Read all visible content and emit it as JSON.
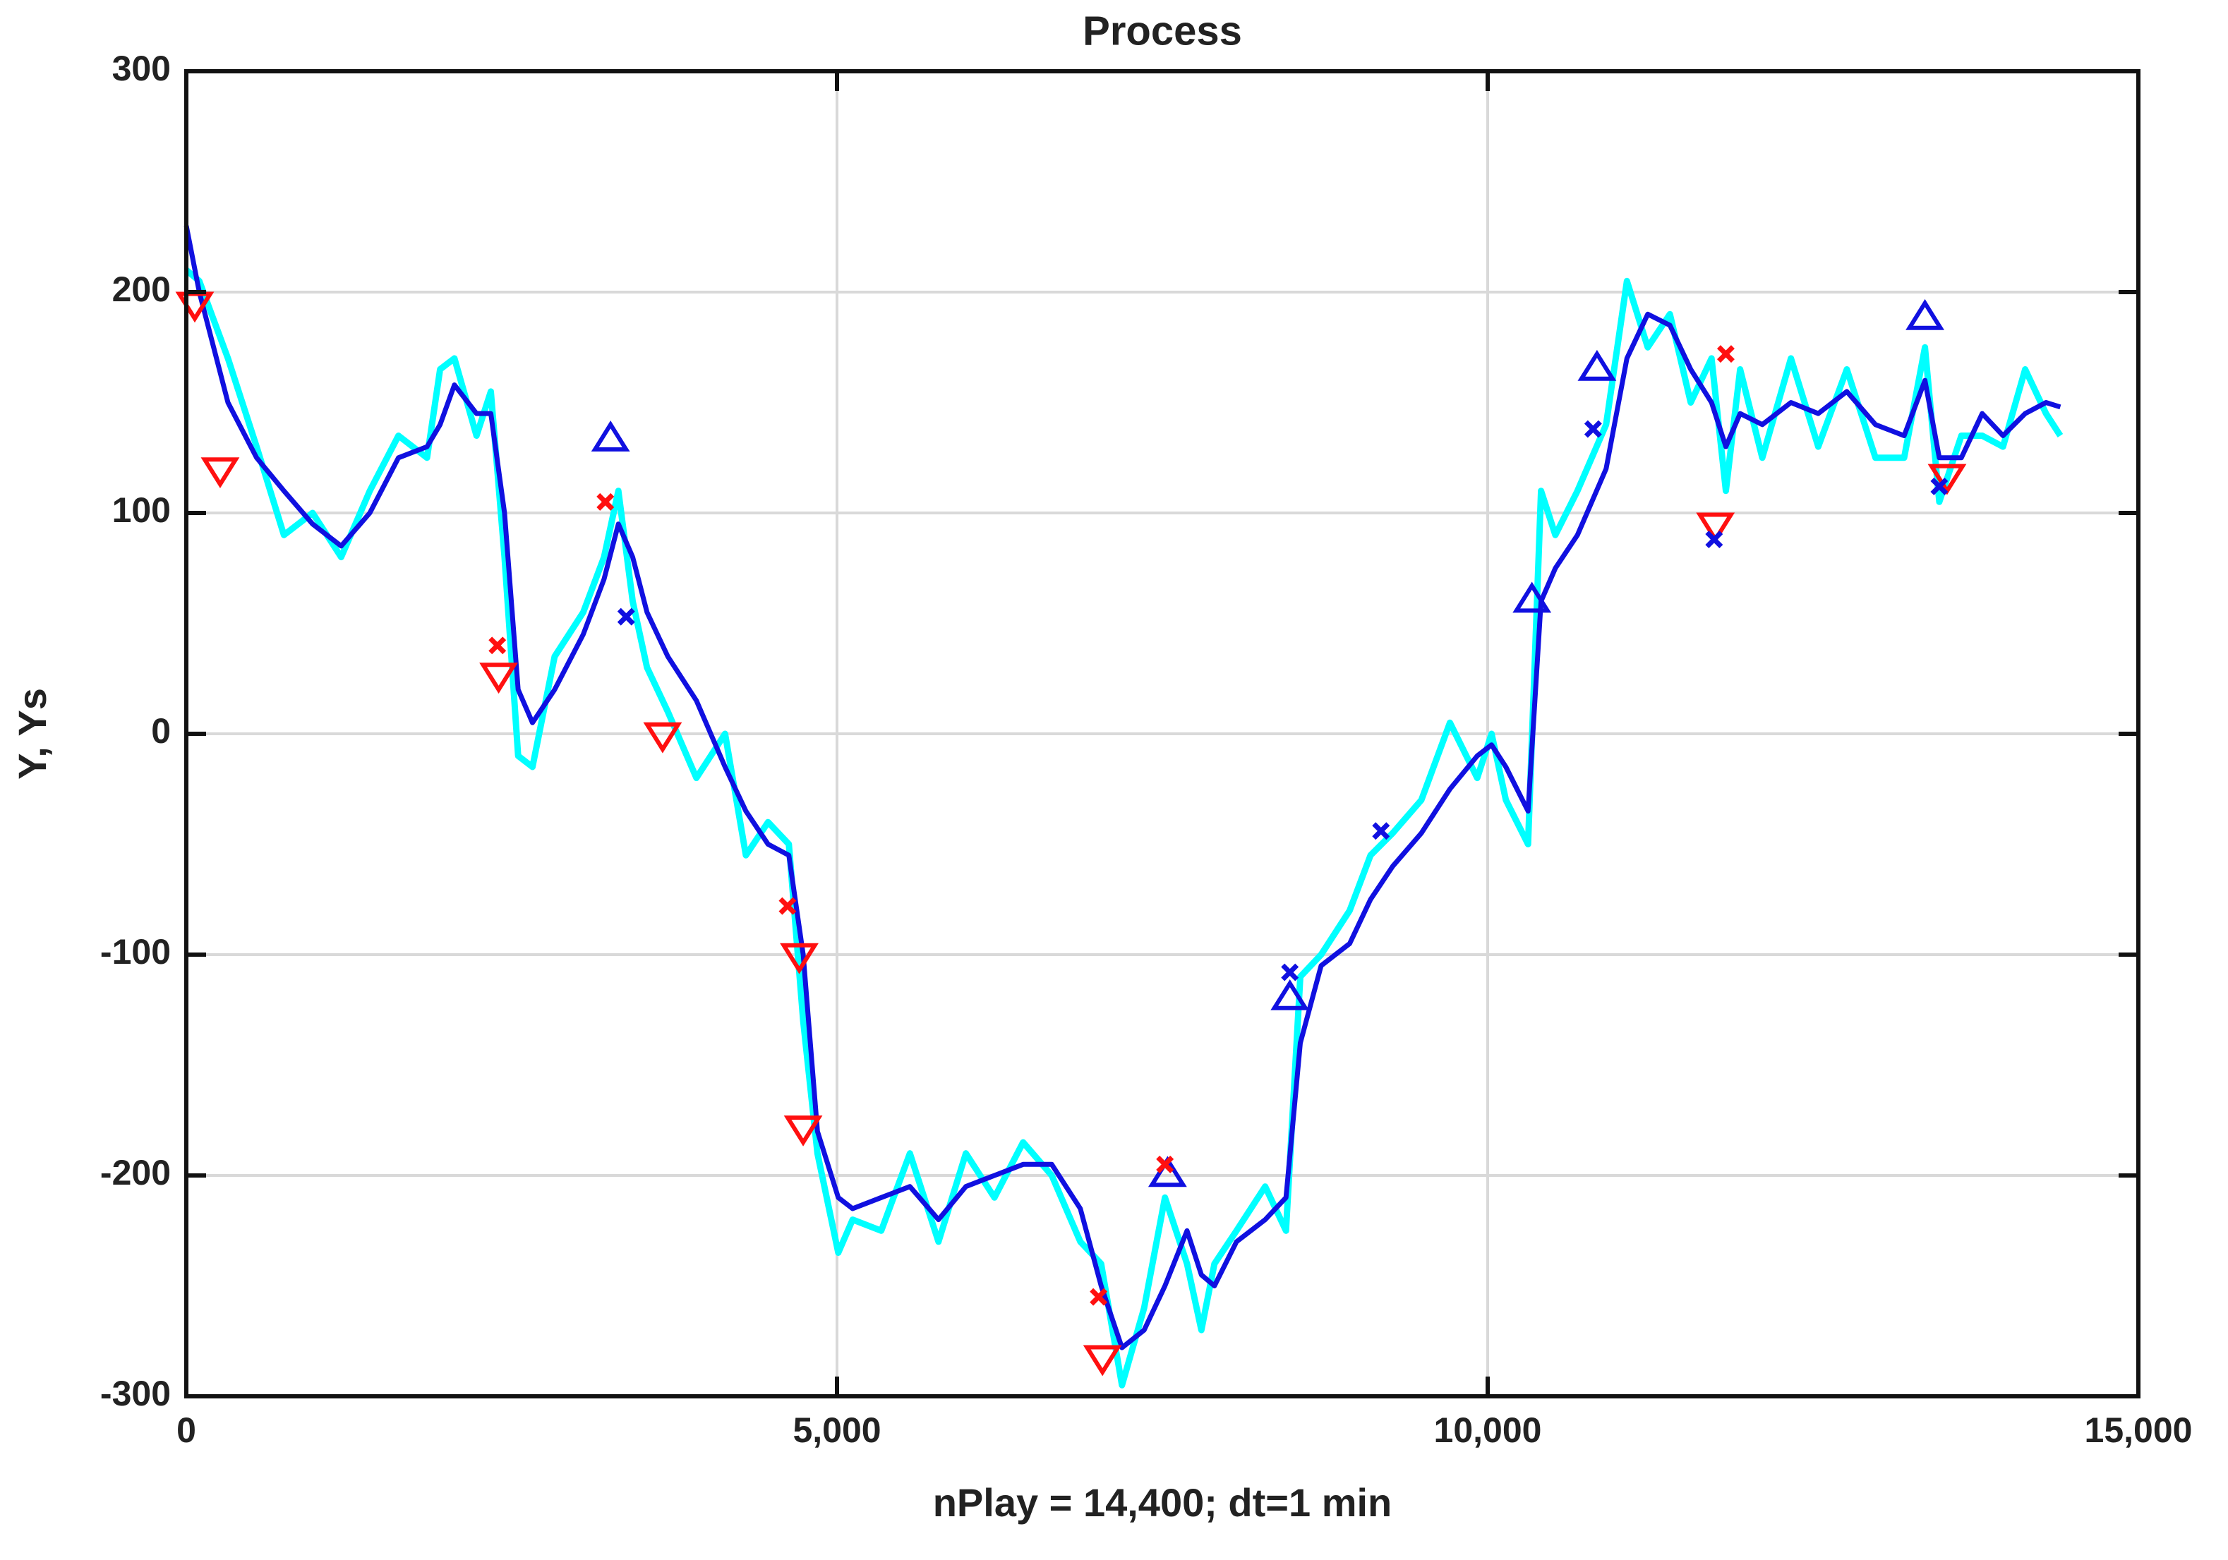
{
  "chart_data": {
    "type": "line",
    "title": "Process",
    "x_label": "nPlay = 14,400;   dt=1 min",
    "y_label": "Y,  Ys",
    "xlim": [
      0,
      15000
    ],
    "ylim": [
      -300,
      300
    ],
    "xticks": [
      0,
      {
        "value": 5000,
        "label": "5,000"
      },
      {
        "value": 10000,
        "label": "10,000"
      },
      {
        "value": 15000,
        "label": "15,000"
      }
    ],
    "yticks": [
      -300,
      -200,
      -100,
      0,
      100,
      200,
      300
    ],
    "grid": true,
    "series": [
      {
        "color": "#00ffff",
        "marker": "none",
        "x": [
          0,
          100,
          320,
          540,
          750,
          970,
          1190,
          1410,
          1630,
          1850,
          1950,
          2060,
          2230,
          2340,
          2445,
          2550,
          2660,
          2830,
          3050,
          3210,
          3320,
          3430,
          3540,
          3700,
          3920,
          4140,
          4300,
          4470,
          4630,
          4740,
          4850,
          5010,
          5120,
          5340,
          5560,
          5780,
          5990,
          6210,
          6430,
          6650,
          6870,
          7030,
          7190,
          7360,
          7520,
          7690,
          7800,
          7900,
          8070,
          8290,
          8450,
          8560,
          8720,
          8940,
          9100,
          9270,
          9490,
          9710,
          9920,
          10030,
          10140,
          10310,
          10410,
          10520,
          10690,
          10910,
          11070,
          11230,
          11400,
          11560,
          11720,
          11830,
          11940,
          12110,
          12330,
          12540,
          12760,
          12980,
          13200,
          13360,
          13470,
          13640,
          13800,
          13960,
          14130,
          14290,
          14400
        ],
        "values": [
          210,
          205,
          170,
          130,
          90,
          100,
          80,
          110,
          135,
          125,
          165,
          170,
          135,
          155,
          80,
          -10,
          -15,
          35,
          55,
          80,
          110,
          60,
          30,
          10,
          -20,
          0,
          -55,
          -40,
          -50,
          -130,
          -190,
          -235,
          -220,
          -225,
          -190,
          -230,
          -190,
          -210,
          -185,
          -200,
          -230,
          -240,
          -295,
          -260,
          -210,
          -240,
          -270,
          -240,
          -225,
          -205,
          -225,
          -110,
          -100,
          -80,
          -55,
          -45,
          -30,
          5,
          -20,
          0,
          -30,
          -50,
          110,
          90,
          110,
          140,
          205,
          175,
          190,
          150,
          170,
          110,
          165,
          125,
          170,
          130,
          165,
          125,
          125,
          175,
          105,
          135,
          135,
          130,
          165,
          145,
          135
        ]
      },
      {
        "color": "#1010e0",
        "marker": "none",
        "x": [
          0,
          100,
          320,
          540,
          750,
          970,
          1190,
          1410,
          1630,
          1850,
          1950,
          2060,
          2230,
          2340,
          2445,
          2550,
          2660,
          2830,
          3050,
          3210,
          3320,
          3430,
          3540,
          3700,
          3920,
          4140,
          4300,
          4470,
          4630,
          4740,
          4850,
          5010,
          5120,
          5340,
          5560,
          5780,
          5990,
          6210,
          6430,
          6650,
          6870,
          7030,
          7190,
          7360,
          7520,
          7690,
          7800,
          7900,
          8070,
          8290,
          8450,
          8560,
          8720,
          8940,
          9100,
          9270,
          9490,
          9710,
          9920,
          10030,
          10140,
          10310,
          10410,
          10520,
          10690,
          10910,
          11070,
          11230,
          11400,
          11560,
          11720,
          11830,
          11940,
          12110,
          12330,
          12540,
          12760,
          12980,
          13200,
          13360,
          13470,
          13640,
          13800,
          13960,
          14130,
          14290,
          14400
        ],
        "values": [
          230,
          200,
          150,
          125,
          110,
          95,
          85,
          100,
          125,
          130,
          140,
          158,
          145,
          145,
          100,
          20,
          5,
          20,
          45,
          70,
          95,
          80,
          55,
          35,
          15,
          -15,
          -35,
          -50,
          -55,
          -100,
          -180,
          -210,
          -215,
          -210,
          -205,
          -220,
          -205,
          -200,
          -195,
          -195,
          -215,
          -250,
          -278,
          -270,
          -250,
          -225,
          -245,
          -250,
          -230,
          -220,
          -210,
          -140,
          -105,
          -95,
          -75,
          -60,
          -45,
          -25,
          -10,
          -5,
          -15,
          -35,
          60,
          75,
          90,
          120,
          170,
          190,
          185,
          165,
          150,
          130,
          145,
          140,
          150,
          145,
          155,
          140,
          135,
          160,
          125,
          125,
          145,
          135,
          145,
          150,
          148
        ]
      },
      {
        "color": "#ff1010",
        "marker": "triangle-down",
        "x": [
          65,
          260,
          2400,
          3660,
          4710,
          4740,
          7040,
          11750,
          13530
        ],
        "values": [
          195,
          120,
          27,
          0,
          -100,
          -178,
          -282,
          95,
          117
        ]
      },
      {
        "color": "#1010e0",
        "marker": "triangle-up",
        "x": [
          3260,
          7540,
          8480,
          10340,
          10840,
          13360
        ],
        "values": [
          133,
          -200,
          -120,
          60,
          165,
          188
        ]
      },
      {
        "color": "#ff1010",
        "marker": "cross",
        "x": [
          2390,
          3220,
          4620,
          7010,
          7520,
          11830
        ],
        "values": [
          40,
          105,
          -78,
          -255,
          -195,
          172
        ]
      },
      {
        "color": "#1010e0",
        "marker": "cross",
        "x": [
          3380,
          8480,
          9180,
          10810,
          11740,
          13470
        ],
        "values": [
          53,
          -108,
          -44,
          138,
          88,
          112
        ]
      }
    ]
  }
}
